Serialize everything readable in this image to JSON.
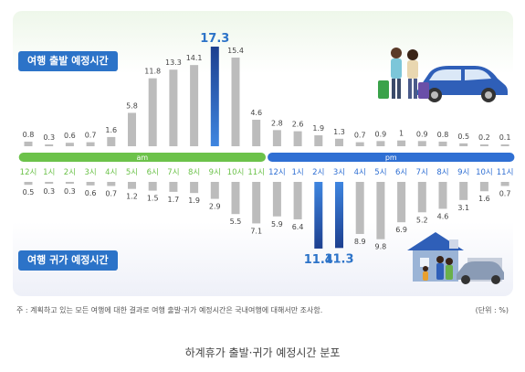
{
  "labels": {
    "departure": "여행 출발 예정시간",
    "return": "여행 귀가 예정시간",
    "am": "am",
    "pm": "pm",
    "note": "주 : 계획하고 있는 모든 여행에 대한 결과로 여행 출발·귀가 예정시간은 국내여행에 대해서만 조사함.",
    "unit": "(단위 : %)",
    "caption": "하계휴가 출발·귀가 예정시간 분포"
  },
  "colors": {
    "bar_gray": "#bcbcbc",
    "highlight_top": "#2f6fd3",
    "highlight_bottom": "#1d3f8f",
    "am_band": "#6cc24a",
    "pm_band": "#2f6fd3",
    "pill": "#2c73c8"
  },
  "chart_data": {
    "type": "bar",
    "categories": [
      "12시",
      "1시",
      "2시",
      "3시",
      "4시",
      "5시",
      "6시",
      "7시",
      "8시",
      "9시",
      "10시",
      "11시",
      "12시",
      "1시",
      "2시",
      "3시",
      "4시",
      "5시",
      "6시",
      "7시",
      "8시",
      "9시",
      "10시",
      "11시"
    ],
    "series": [
      {
        "name": "여행 출발 예정시간",
        "values": [
          0.8,
          0.3,
          0.6,
          0.7,
          1.6,
          5.8,
          11.8,
          13.3,
          14.1,
          17.3,
          15.4,
          4.6,
          2.8,
          2.6,
          1.9,
          1.3,
          0.7,
          0.9,
          1.0,
          0.9,
          0.8,
          0.5,
          0.2,
          0.1
        ],
        "highlight": [
          9
        ]
      },
      {
        "name": "여행 귀가 예정시간",
        "values": [
          0.5,
          0.3,
          0.3,
          0.6,
          0.7,
          1.2,
          1.5,
          1.7,
          1.9,
          2.9,
          5.5,
          7.1,
          5.9,
          6.4,
          11.4,
          11.3,
          8.9,
          9.8,
          6.9,
          5.2,
          4.6,
          3.1,
          1.6,
          0.7
        ],
        "highlight": [
          14,
          15
        ]
      }
    ],
    "periods": [
      {
        "label": "am",
        "start": 0,
        "end": 11
      },
      {
        "label": "pm",
        "start": 12,
        "end": 23
      }
    ]
  }
}
